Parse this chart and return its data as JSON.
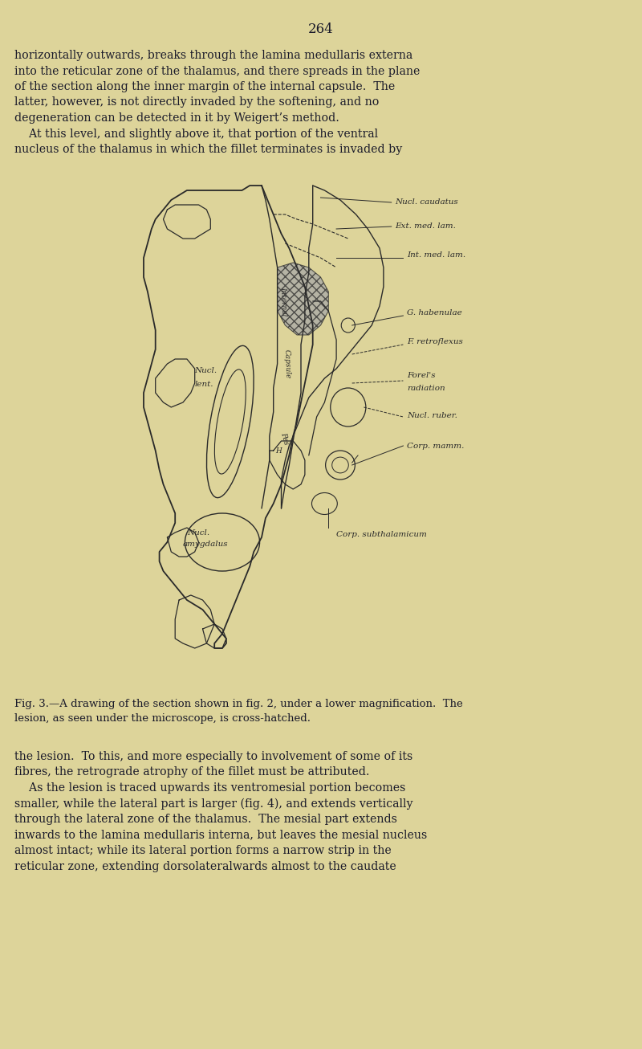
{
  "bg_color": "#ddd49a",
  "text_color": "#1a1a2a",
  "page_number": "264",
  "para1": [
    "horizontally outwards, breaks through the lamina medullaris externa",
    "into the reticular zone of the thalamus, and there spreads in the plane",
    "of the section along the inner margin of the internal capsule.  The",
    "latter, however, is not directly invaded by the softening, and no",
    "degeneration can be detected in it by Weigert’s method.",
    "    At this level, and slightly above it, that portion of the ventral",
    "nucleus of the thalamus in which the fillet terminates is invaded by"
  ],
  "para2": [
    "the lesion.  To this, and more especially to involvement of some of its",
    "fibres, the retrograde atrophy of the fillet must be attributed.",
    "    As the lesion is traced upwards its ventromesial portion becomes",
    "smaller, while the lateral part is larger (fig. 4), and extends vertically",
    "through the lateral zone of the thalamus.  The mesial part extends",
    "inwards to the lamina medullaris interna, but leaves the mesial nucleus",
    "almost intact; while its lateral portion forms a narrow strip in the",
    "reticular zone, extending dorsolateralwards almost to the caudate"
  ],
  "fig_caption_1": "Fig. 3.—A drawing of the section shown in fig. 2, under a lower magnification.  The",
  "fig_caption_2": "lesion, as seen under the microscope, is cross-hatched."
}
